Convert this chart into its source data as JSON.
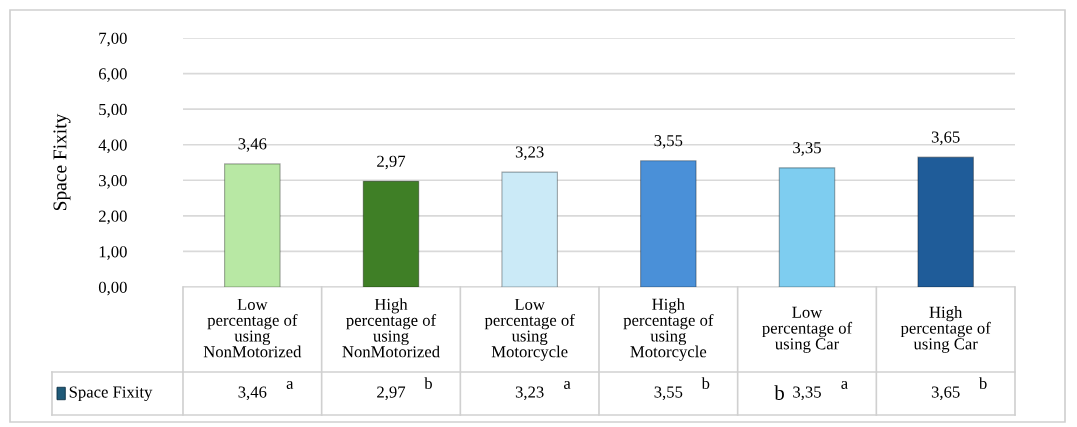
{
  "chart_data": {
    "type": "bar",
    "ylabel": "Space Fixity",
    "categories": [
      "Low\npercentage of\nusing\nNonMotorized",
      "High\npercentage of\nusing\nNonMotorized",
      "Low\npercentage of\nusing\nMotorcycle",
      "High\npercentage of\nusing\nMotorcycle",
      "Low\npercentage of\nusing Car",
      "High\npercentage of\nusing Car"
    ],
    "series": [
      {
        "name": "Space Fixity",
        "color": "#1f5a78",
        "colors": [
          "#b8e8a4",
          "#3f7f26",
          "#cbeaf7",
          "#4a90d8",
          "#7ecdf0",
          "#1f5c99"
        ],
        "values": [
          3.46,
          2.97,
          3.23,
          3.55,
          3.35,
          3.65
        ],
        "value_labels": [
          "3,46",
          "2,97",
          "3,23",
          "3,55",
          "3,35",
          "3,65"
        ]
      }
    ],
    "ylim": [
      0,
      7
    ],
    "yticks": [
      {
        "value": 0,
        "label": "0,00"
      },
      {
        "value": 1,
        "label": "1,00"
      },
      {
        "value": 2,
        "label": "2,00"
      },
      {
        "value": 3,
        "label": "3,00"
      },
      {
        "value": 4,
        "label": "4,00"
      },
      {
        "value": 5,
        "label": "5,00"
      },
      {
        "value": 6,
        "label": "6,00"
      },
      {
        "value": 7,
        "label": "7,00"
      }
    ],
    "grid": "y",
    "legend": "bottom",
    "annotations": [
      "a",
      "b",
      "a",
      "b",
      "b",
      "a",
      "b"
    ]
  }
}
